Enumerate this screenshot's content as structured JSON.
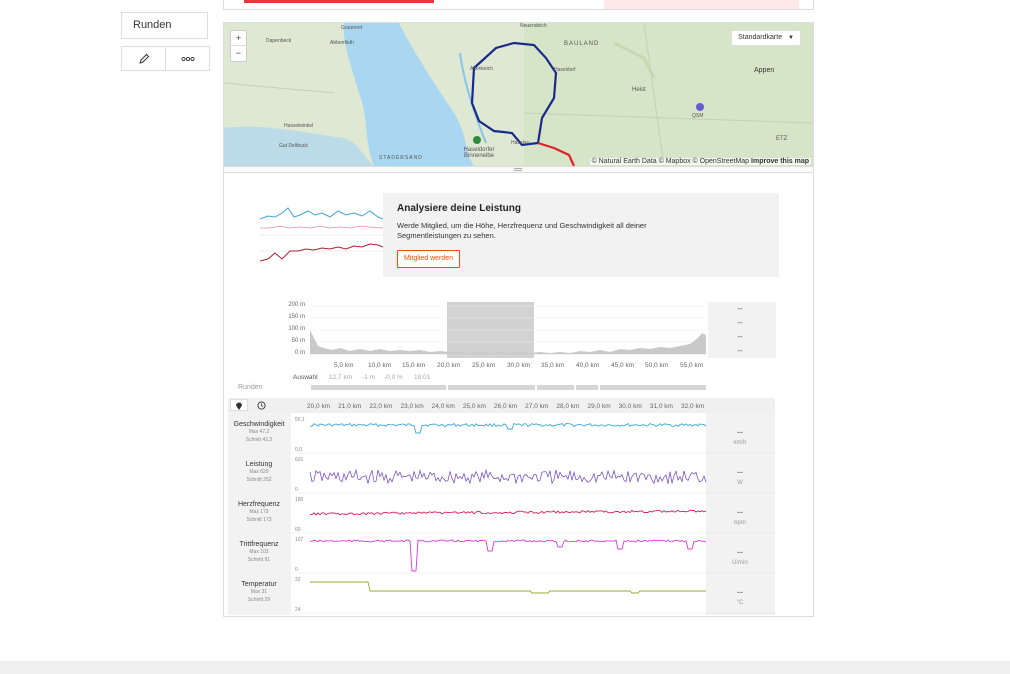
{
  "left_menu": {
    "runden_label": "Runden",
    "edit_icon": "pencil-icon",
    "more_icon": "more-icon"
  },
  "map": {
    "zoom_in": "+",
    "zoom_out": "−",
    "style_select": "Standardkarte",
    "attribution": "© Natural Earth Data © Mapbox © OpenStreetMap",
    "improve_link": "Improve this map",
    "place_labels": [
      "Grauerort",
      "Abbenfleth",
      "Dapenbeck",
      "Neuendeich",
      "BAULAND",
      "Appen",
      "Altenkeich",
      "Haseldorf",
      "Heist",
      "QSM",
      "Haseldorfer Binnenelbe",
      "STADERSAND",
      "Hasselwinkel",
      "Gut Deltbuck",
      "Haselau",
      "ETZ"
    ]
  },
  "promo": {
    "title": "Analysiere deine Leistung",
    "text": "Werde Mitglied, um die Höhe, Herzfrequenz und Geschwindigkeit all deiner Segmentleistungen zu sehen.",
    "button": "Mitglied werden"
  },
  "elevation": {
    "y_ticks": [
      "200 m",
      "150 m",
      "100 m",
      "50 m",
      "0 m"
    ],
    "x_ticks": [
      "5,0 km",
      "10,0 km",
      "15,0 km",
      "20,0 km",
      "25,0 km",
      "30,0 km",
      "35,0 km",
      "40,0 km",
      "45,0 km",
      "50,0 km",
      "55,0 km"
    ],
    "selection_values": [
      "--",
      "--",
      "--",
      "--"
    ],
    "auswahl_label": "Auswahl",
    "auswahl_values": [
      "12,7 km",
      "-1 m",
      "-0,0 %",
      "18:01"
    ],
    "runden_label": "Runden",
    "selection_range_km": [
      19.5,
      33.0
    ]
  },
  "streams": {
    "x_ticks": [
      "20,0 km",
      "21,0 km",
      "22,0 km",
      "23,0 km",
      "24,0 km",
      "25,0 km",
      "26,0 km",
      "27,0 km",
      "28,0 km",
      "29,0 km",
      "30,0 km",
      "31,0 km",
      "32,0 km"
    ],
    "rows": [
      {
        "name": "Geschwindigkeit",
        "max": "Max 47,2",
        "avg": "Schnitt 42,3",
        "ytop": "55,1",
        "ybot": "0,0",
        "value": "--",
        "unit": "km/h",
        "color": "#3fa6d6"
      },
      {
        "name": "Leistung",
        "max": "Max 629",
        "avg": "Schnitt 252",
        "ytop": "631",
        "ybot": "0",
        "value": "--",
        "unit": "W",
        "color": "#6a3fc8"
      },
      {
        "name": "Herzfrequenz",
        "max": "Max 179",
        "avg": "Schnitt 173",
        "ytop": "180",
        "ybot": "60",
        "value": "--",
        "unit": "bpm",
        "color": "#d81b60"
      },
      {
        "name": "Trittfrequenz",
        "max": "Max 103",
        "avg": "Schnitt 91",
        "ytop": "107",
        "ybot": "0",
        "value": "--",
        "unit": "U/min",
        "color": "#d63cd6"
      },
      {
        "name": "Temperatur",
        "max": "Max 31",
        "avg": "Schnitt 29",
        "ytop": "32",
        "ybot": "24",
        "value": "--",
        "unit": "°C",
        "color": "#9aa83a"
      }
    ]
  },
  "colors": {
    "accent": "#fc4c02",
    "route": "#1a2a8a",
    "water": "#a9d6f0",
    "land": "#dfe8d3"
  }
}
